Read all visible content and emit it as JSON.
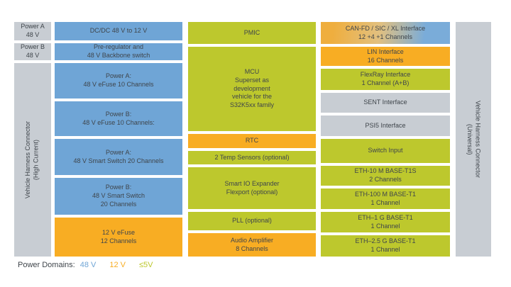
{
  "colors": {
    "blue": "#6FA5D6",
    "orange": "#F8AD23",
    "green": "#BDC82D",
    "gray": "#C8CDD3",
    "gradient_left": "#EFAE3E",
    "gradient_mid": "#E2C07F",
    "gradient_right": "#7AACD9",
    "text": "#3F454B"
  },
  "columns": {
    "power_inputs": [
      {
        "id": "power-a-input",
        "lines": [
          "Power A",
          "48 V"
        ],
        "color": "gray"
      },
      {
        "id": "power-b-input",
        "lines": [
          "Power B",
          "48 V"
        ],
        "color": "gray"
      },
      {
        "id": "vehicle-harness-connector-high-current",
        "lines": [
          "Vehicle Harness Connector",
          "(High Current)"
        ],
        "color": "gray",
        "vertical": "up"
      }
    ],
    "power_stage": [
      {
        "id": "dcdc-converter",
        "lines": [
          "DC/DC 48 V to 12 V"
        ],
        "color": "blue"
      },
      {
        "id": "pre-regulator",
        "lines": [
          "Pre-regulator and",
          "48 V Backbone switch"
        ],
        "color": "blue"
      },
      {
        "id": "power-a-efuse",
        "lines": [
          "Power A:",
          "48 V eFuse 10 Channels"
        ],
        "color": "blue"
      },
      {
        "id": "power-b-efuse",
        "lines": [
          "Power B:",
          "48 V eFuse 10 Channels:"
        ],
        "color": "blue"
      },
      {
        "id": "power-a-smart-switch",
        "lines": [
          "Power A:",
          "48 V Smart Switch 20 Channels"
        ],
        "color": "blue"
      },
      {
        "id": "power-b-smart-switch",
        "lines": [
          "Power B:",
          "48 V Smart Switch",
          "20 Channels"
        ],
        "color": "blue"
      },
      {
        "id": "12v-efuse",
        "lines": [
          "12 V eFuse",
          "12 Channels"
        ],
        "color": "orange"
      }
    ],
    "core": [
      {
        "id": "pmic",
        "lines": [
          "PMIC"
        ],
        "color": "green"
      },
      {
        "id": "mcu",
        "lines": [
          "MCU",
          "Superset as",
          "development",
          "vehicle for the",
          "S32K5xx family"
        ],
        "color": "green"
      },
      {
        "id": "rtc",
        "lines": [
          "RTC"
        ],
        "color": "orange"
      },
      {
        "id": "temp-sensors",
        "lines": [
          "2 Temp Sensors (optional)"
        ],
        "color": "green"
      },
      {
        "id": "smart-io-expander",
        "lines": [
          "Smart IO Expander",
          "Flexport (optional)"
        ],
        "color": "green"
      },
      {
        "id": "pll",
        "lines": [
          "PLL (optional)"
        ],
        "color": "green"
      },
      {
        "id": "audio-amplifier",
        "lines": [
          "Audio Amplifier",
          "8 Channels"
        ],
        "color": "orange"
      }
    ],
    "interfaces": [
      {
        "id": "can-fd-sic-xl-interface",
        "lines": [
          "CAN-FD / SIC / XL Interface",
          "12 +4 +1 Channels"
        ],
        "color": "mixed"
      },
      {
        "id": "lin-interface",
        "lines": [
          "LIN Interface",
          "16 Channels"
        ],
        "color": "orange"
      },
      {
        "id": "flexray-interface",
        "lines": [
          "FlexRay Interface",
          "1 Channel (A+B)"
        ],
        "color": "green"
      },
      {
        "id": "sent-interface",
        "lines": [
          "SENT Interface"
        ],
        "color": "gray"
      },
      {
        "id": "psi5-interface",
        "lines": [
          "PSI5 Interface"
        ],
        "color": "gray"
      },
      {
        "id": "switch-input",
        "lines": [
          "Switch Input"
        ],
        "color": "green"
      },
      {
        "id": "eth-10m-base-t1s",
        "lines": [
          "ETH-10 M BASE-T1S",
          "2 Channels"
        ],
        "color": "green"
      },
      {
        "id": "eth-100m-base-t1",
        "lines": [
          "ETH-100 M BASE-T1",
          "1 Channel"
        ],
        "color": "green"
      },
      {
        "id": "eth-1g-base-t1",
        "lines": [
          "ETH–1 G BASE-T1",
          "1 Channel"
        ],
        "color": "green"
      },
      {
        "id": "eth-2-5g-base-t1",
        "lines": [
          "ETH–2.5 G BASE-T1",
          "1 Channel"
        ],
        "color": "green"
      }
    ],
    "harness_universal": [
      {
        "id": "vehicle-harness-connector-universal",
        "lines": [
          "Vehicle Harness Connector",
          "(Universal)"
        ],
        "color": "gray",
        "vertical": "down"
      }
    ]
  },
  "legend": {
    "label": "Power Domains:",
    "items": [
      {
        "id": "48v",
        "label": "48 V",
        "color": "blue"
      },
      {
        "id": "12v",
        "label": "12 V",
        "color": "orange"
      },
      {
        "id": "5v",
        "label": "≤5V",
        "color": "green"
      }
    ]
  }
}
